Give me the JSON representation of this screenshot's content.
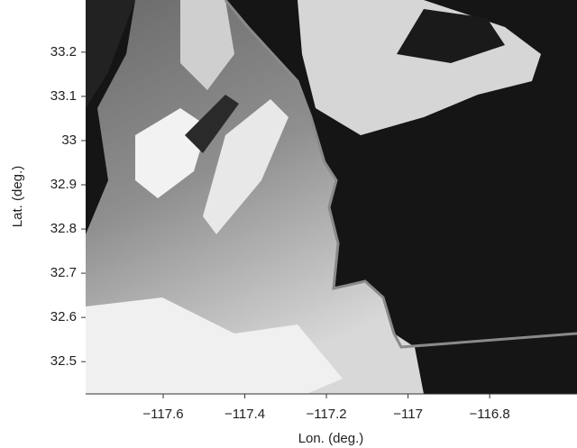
{
  "chart_data": {
    "type": "map",
    "xlabel": "Lon. (deg.)",
    "ylabel": "Lat. (deg.)",
    "xlim": [
      -117.79,
      -116.586
    ],
    "ylim": [
      32.427,
      33.318
    ],
    "xticks": [
      {
        "value": -117.6,
        "label": "−117.6"
      },
      {
        "value": -117.4,
        "label": "−117.4"
      },
      {
        "value": -117.2,
        "label": "−117.2"
      },
      {
        "value": -117,
        "label": "−117"
      },
      {
        "value": -116.8,
        "label": "−116.8"
      }
    ],
    "yticks": [
      32.5,
      32.6,
      32.7,
      32.8,
      32.9,
      33,
      33.1,
      33.2
    ]
  }
}
